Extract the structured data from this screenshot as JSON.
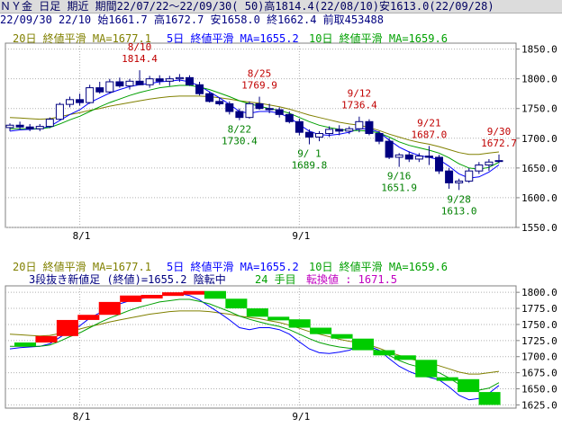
{
  "header": {
    "title": "ＮＹ金 日足 期近 期間22/07/22～22/09/30( 50)高1814.4(22/08/10)安1613.0(22/09/28)",
    "info": "22/09/30 22/10 始1661.7 高1672.7 安1658.0 終1662.4 前取453488"
  },
  "top_legend": {
    "ma20": "20日 終値平滑 MA=1677.1",
    "ma5": "5日 終値平滑 MA=1655.2",
    "ma10": "10日 終値平滑 MA=1659.6"
  },
  "bottom_legend": {
    "ma20": "20日 終値平滑 MA=1677.1",
    "ma5": "5日 終値平滑 MA=1655.2",
    "ma10": "10日 終値平滑 MA=1659.6",
    "status_main": "3段抜き新値足 (終値)=1655.2 陰転中",
    "status_count": "24 手目",
    "status_reversal": "転換値 : 1671.5"
  },
  "annotations": [
    {
      "date": "8/10",
      "value": "1814.4",
      "type": "high"
    },
    {
      "date": "8/25",
      "value": "1769.9",
      "type": "high"
    },
    {
      "date": "9/12",
      "value": "1736.4",
      "type": "high"
    },
    {
      "date": "9/21",
      "value": "1687.0",
      "type": "high"
    },
    {
      "date": "9/30",
      "value": "1672.7",
      "type": "high"
    },
    {
      "date": "8/22",
      "value": "1730.4",
      "type": "low"
    },
    {
      "date": "9/ 1",
      "value": "1689.8",
      "type": "low"
    },
    {
      "date": "9/16",
      "value": "1651.9",
      "type": "low"
    },
    {
      "date": "9/28",
      "value": "1613.0",
      "type": "low"
    }
  ],
  "colors": {
    "up": "#ffffff",
    "down": "#000080",
    "ma20": "#808000",
    "ma5": "#0000ff",
    "ma10": "#00a000",
    "high_label": "#c00000",
    "low_label": "#008000",
    "rise_block": "#ff0000",
    "fall_block": "#00cc00"
  },
  "chart_data": [
    {
      "type": "candlestick",
      "title": "ＮＹ金 日足",
      "x_ticks": [
        "8/1",
        "9/1"
      ],
      "y_ticks": [
        "1850.0",
        "1800.0",
        "1750.0",
        "1700.0",
        "1650.0",
        "1600.0",
        "1550.0"
      ],
      "ylim": [
        1550,
        1860
      ],
      "grid": true,
      "candles": [
        [
          1718,
          1725,
          1712,
          1722
        ],
        [
          1722,
          1728,
          1715,
          1719
        ],
        [
          1719,
          1724,
          1712,
          1716
        ],
        [
          1716,
          1724,
          1712,
          1720
        ],
        [
          1720,
          1735,
          1717,
          1732
        ],
        [
          1732,
          1760,
          1730,
          1757
        ],
        [
          1757,
          1770,
          1752,
          1765
        ],
        [
          1765,
          1775,
          1755,
          1760
        ],
        [
          1760,
          1790,
          1758,
          1785
        ],
        [
          1785,
          1795,
          1775,
          1778
        ],
        [
          1778,
          1800,
          1775,
          1795
        ],
        [
          1795,
          1802,
          1785,
          1788
        ],
        [
          1788,
          1800,
          1782,
          1796
        ],
        [
          1796,
          1814.4,
          1790,
          1790
        ],
        [
          1790,
          1805,
          1785,
          1800
        ],
        [
          1800,
          1806,
          1790,
          1796
        ],
        [
          1796,
          1805,
          1788,
          1800
        ],
        [
          1800,
          1808,
          1795,
          1802
        ],
        [
          1802,
          1806,
          1788,
          1790
        ],
        [
          1790,
          1795,
          1772,
          1775
        ],
        [
          1775,
          1778,
          1760,
          1762
        ],
        [
          1762,
          1768,
          1755,
          1758
        ],
        [
          1758,
          1762,
          1740,
          1745
        ],
        [
          1745,
          1750,
          1730.4,
          1735
        ],
        [
          1735,
          1762,
          1733,
          1758
        ],
        [
          1758,
          1769.9,
          1748,
          1750
        ],
        [
          1750,
          1758,
          1742,
          1748
        ],
        [
          1748,
          1752,
          1735,
          1740
        ],
        [
          1740,
          1745,
          1725,
          1728
        ],
        [
          1728,
          1733,
          1705,
          1710
        ],
        [
          1710,
          1715,
          1689.8,
          1702
        ],
        [
          1702,
          1712,
          1695,
          1708
        ],
        [
          1708,
          1720,
          1702,
          1715
        ],
        [
          1715,
          1722,
          1705,
          1712
        ],
        [
          1712,
          1720,
          1707,
          1716
        ],
        [
          1716,
          1736.4,
          1710,
          1728
        ],
        [
          1728,
          1732,
          1705,
          1708
        ],
        [
          1708,
          1712,
          1690,
          1695
        ],
        [
          1695,
          1700,
          1665,
          1668
        ],
        [
          1668,
          1675,
          1651.9,
          1672
        ],
        [
          1672,
          1678,
          1660,
          1665
        ],
        [
          1665,
          1675,
          1660,
          1670
        ],
        [
          1670,
          1687,
          1655,
          1668
        ],
        [
          1668,
          1672,
          1640,
          1645
        ],
        [
          1645,
          1650,
          1615,
          1625
        ],
        [
          1625,
          1632,
          1613,
          1628
        ],
        [
          1628,
          1650,
          1625,
          1645
        ],
        [
          1645,
          1660,
          1640,
          1655
        ],
        [
          1655,
          1665,
          1645,
          1660
        ],
        [
          1661.7,
          1672.7,
          1658,
          1662.4
        ]
      ],
      "series": [
        {
          "name": "20日 終値平滑",
          "values": [
            1735,
            1734,
            1733,
            1732,
            1733,
            1736,
            1740,
            1743,
            1747,
            1750,
            1754,
            1757,
            1760,
            1763,
            1766,
            1768,
            1770,
            1771,
            1771,
            1771,
            1770,
            1768,
            1766,
            1763,
            1761,
            1759,
            1756,
            1753,
            1749,
            1744,
            1739,
            1735,
            1731,
            1727,
            1724,
            1722,
            1718,
            1713,
            1707,
            1702,
            1697,
            1693,
            1690,
            1686,
            1681,
            1676,
            1673,
            1673,
            1675,
            1677.1
          ]
        },
        {
          "name": "5日 終値平滑",
          "values": [
            1712,
            1714,
            1715,
            1716,
            1720,
            1730,
            1740,
            1748,
            1760,
            1768,
            1776,
            1782,
            1787,
            1790,
            1792,
            1795,
            1796,
            1798,
            1795,
            1788,
            1778,
            1768,
            1757,
            1745,
            1742,
            1745,
            1745,
            1742,
            1735,
            1723,
            1712,
            1706,
            1705,
            1707,
            1710,
            1716,
            1716,
            1710,
            1697,
            1685,
            1677,
            1671,
            1668,
            1664,
            1653,
            1640,
            1633,
            1635,
            1643,
            1655.2
          ]
        },
        {
          "name": "10日 終値平滑",
          "values": [
            1716,
            1716,
            1716,
            1716,
            1718,
            1724,
            1731,
            1737,
            1745,
            1753,
            1760,
            1766,
            1772,
            1777,
            1781,
            1785,
            1787,
            1789,
            1789,
            1786,
            1782,
            1776,
            1770,
            1763,
            1758,
            1754,
            1750,
            1747,
            1742,
            1735,
            1728,
            1722,
            1718,
            1715,
            1713,
            1713,
            1712,
            1709,
            1702,
            1694,
            1688,
            1684,
            1680,
            1675,
            1667,
            1657,
            1650,
            1648,
            1651,
            1659.6
          ]
        }
      ]
    },
    {
      "type": "bar",
      "title": "3段抜き新値足 (終値)",
      "x_ticks": [
        "8/1",
        "9/1"
      ],
      "y_ticks": [
        "1800.0",
        "1775.0",
        "1750.0",
        "1725.0",
        "1700.0",
        "1675.0",
        "1650.0",
        "1625.0"
      ],
      "ylim": [
        1620,
        1810
      ],
      "grid": true,
      "rise_bricks": [
        [
          1722,
          1732
        ],
        [
          1732,
          1757
        ],
        [
          1757,
          1765
        ],
        [
          1765,
          1785
        ],
        [
          1785,
          1795
        ],
        [
          1795,
          1796
        ],
        [
          1796,
          1800
        ],
        [
          1800,
          1802
        ]
      ],
      "fall_bricks": [
        [
          1802,
          1790
        ],
        [
          1790,
          1775
        ],
        [
          1775,
          1762
        ],
        [
          1762,
          1758
        ],
        [
          1758,
          1745
        ],
        [
          1745,
          1735
        ],
        [
          1735,
          1728
        ],
        [
          1728,
          1710
        ],
        [
          1710,
          1702
        ],
        [
          1702,
          1695
        ],
        [
          1695,
          1668
        ],
        [
          1668,
          1665
        ],
        [
          1665,
          1645
        ],
        [
          1645,
          1625
        ]
      ]
    }
  ]
}
